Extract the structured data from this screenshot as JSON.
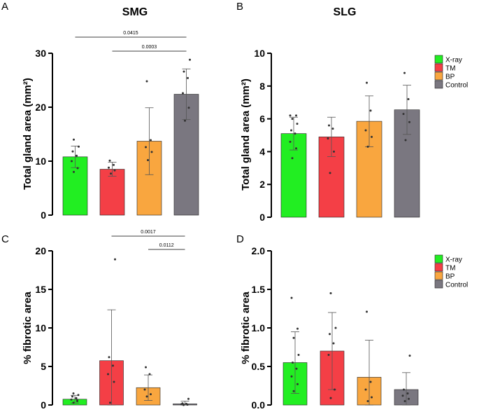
{
  "chart_data": [
    {
      "id": "A",
      "panel": "A",
      "type": "bar",
      "title": "SMG",
      "ylabel": "Total gland area (mm²)",
      "ylim": [
        0,
        30
      ],
      "yticks": [
        0,
        10,
        20,
        30
      ],
      "categories": [
        "X-ray",
        "TM",
        "BP",
        "Control"
      ],
      "values": [
        10.8,
        8.5,
        13.7,
        22.4
      ],
      "errors": [
        2.0,
        1.3,
        6.2,
        4.7
      ],
      "points": [
        [
          8.0,
          8.7,
          10.0,
          11.0,
          11.8,
          12.7,
          14.0
        ],
        [
          7.7,
          8.3,
          8.8,
          9.3,
          10.1
        ],
        [
          10.2,
          11.7,
          12.6,
          13.9,
          24.8
        ],
        [
          17.5,
          19.9,
          22.6,
          25.4,
          26.6,
          28.8
        ]
      ],
      "annotations": [
        {
          "label": "0.0415",
          "from": 0,
          "to": 3
        },
        {
          "label": "0.0003",
          "from": 1,
          "to": 3
        }
      ],
      "legend": false
    },
    {
      "id": "B",
      "panel": "B",
      "type": "bar",
      "title": "SLG",
      "ylabel": "Total gland area (mm²)",
      "ylim": [
        0,
        10
      ],
      "yticks": [
        0,
        2,
        4,
        6,
        8,
        10
      ],
      "categories": [
        "X-ray",
        "TM",
        "BP",
        "Control"
      ],
      "values": [
        5.1,
        4.9,
        5.85,
        6.55
      ],
      "errors": [
        1.0,
        1.2,
        1.55,
        1.5
      ],
      "points": [
        [
          3.6,
          4.2,
          4.6,
          5.1,
          5.3,
          5.7,
          6.0,
          6.2,
          6.2
        ],
        [
          2.7,
          4.0,
          4.8,
          5.4,
          5.6
        ],
        [
          4.3,
          4.9,
          5.3,
          6.5,
          8.2
        ],
        [
          4.7,
          5.8,
          6.3,
          7.2,
          8.8
        ]
      ],
      "annotations": [],
      "legend": true
    },
    {
      "id": "C",
      "panel": "C",
      "type": "bar",
      "title": "",
      "ylabel": "% fibrotic area",
      "ylim": [
        0,
        20
      ],
      "yticks": [
        0,
        5,
        10,
        15,
        20
      ],
      "categories": [
        "X-ray",
        "TM",
        "BP",
        "Control"
      ],
      "values": [
        0.75,
        5.75,
        2.25,
        0.15
      ],
      "errors": [
        0.5,
        6.6,
        1.65,
        0.35
      ],
      "points": [
        [
          0.3,
          0.5,
          0.7,
          0.9,
          1.1,
          1.3,
          1.5,
          0.6
        ],
        [
          0.3,
          3.0,
          4.0,
          5.1,
          6.2,
          18.9
        ],
        [
          1.1,
          1.4,
          2.0,
          4.0,
          4.9
        ],
        [
          0.0,
          0.05,
          0.1,
          0.15,
          0.2,
          0.8
        ]
      ],
      "annotations": [
        {
          "label": "0.0017",
          "from": 1,
          "to": 3
        },
        {
          "label": "0.0112",
          "from": 2,
          "to": 3
        }
      ],
      "legend": false
    },
    {
      "id": "D",
      "panel": "D",
      "type": "bar",
      "title": "",
      "ylabel": "% fibrotic area",
      "ylim": [
        0,
        2.0
      ],
      "yticks": [
        0.0,
        0.5,
        1.0,
        1.5,
        2.0
      ],
      "categories": [
        "X-ray",
        "TM",
        "BP",
        "Control"
      ],
      "values": [
        0.55,
        0.7,
        0.36,
        0.2
      ],
      "errors": [
        0.4,
        0.5,
        0.48,
        0.22
      ],
      "points": [
        [
          0.18,
          0.27,
          0.37,
          0.47,
          0.55,
          0.65,
          0.87,
          0.99,
          1.39
        ],
        [
          0.09,
          0.2,
          0.65,
          0.8,
          0.92,
          1.0,
          1.45
        ],
        [
          0.05,
          0.1,
          0.2,
          0.3,
          1.21
        ],
        [
          0.05,
          0.08,
          0.12,
          0.15,
          0.2,
          0.64
        ]
      ],
      "annotations": [],
      "legend": true
    }
  ],
  "groups": [
    {
      "name": "X-ray",
      "color": "#22ee22"
    },
    {
      "name": "TM",
      "color": "#f43f46"
    },
    {
      "name": "BP",
      "color": "#f9a63f"
    },
    {
      "name": "Control",
      "color": "#7a7780"
    }
  ]
}
